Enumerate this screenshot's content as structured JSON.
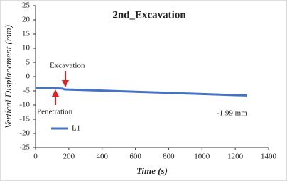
{
  "chart_data": {
    "type": "line",
    "title": "2nd_Excavation",
    "x_label": "Time (s)",
    "y_label": "Vertical Displacement (mm)",
    "x": [
      0,
      100,
      160,
      175,
      400,
      600,
      800,
      1000,
      1200,
      1270
    ],
    "series": [
      {
        "name": "L1",
        "color": "#4472c4",
        "values": [
          -4.0,
          -4.1,
          -4.2,
          -4.5,
          -4.9,
          -5.3,
          -5.7,
          -6.1,
          -6.5,
          -6.6
        ]
      }
    ],
    "xlim": [
      0,
      1400
    ],
    "xticks": [
      0,
      200,
      400,
      600,
      800,
      1000,
      1200,
      1400
    ],
    "ylim": [
      -25,
      25
    ],
    "yticks": [
      -25,
      -20,
      -15,
      -10,
      -5,
      0,
      5,
      10,
      15,
      20,
      25
    ],
    "grid": false,
    "legend": "lower left",
    "annotations": [
      "Excavation",
      "Penetration",
      "-1.99 mm"
    ]
  }
}
